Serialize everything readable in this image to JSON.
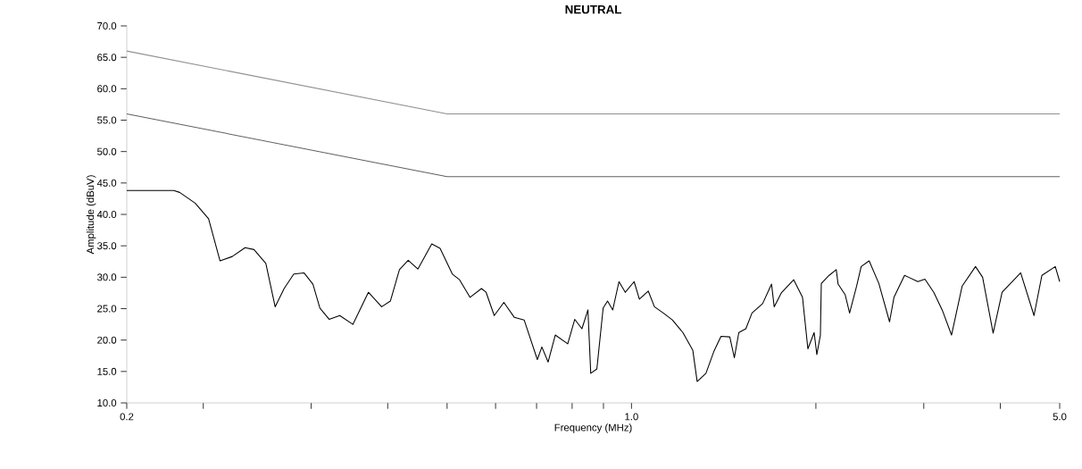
{
  "chart_data": {
    "type": "line",
    "title": "NEUTRAL",
    "xlabel": "Frequency (MHz)",
    "ylabel": "Amplitude (dBuV)",
    "log": "x",
    "xlim": [
      0.15,
      5.0
    ],
    "ylim": [
      10,
      70
    ],
    "xticks": [
      {
        "value": 0.15,
        "label": "0.2"
      },
      {
        "value": 0.2,
        "label": null
      },
      {
        "value": 0.3,
        "label": null
      },
      {
        "value": 0.4,
        "label": null
      },
      {
        "value": 0.5,
        "label": null
      },
      {
        "value": 0.6,
        "label": null
      },
      {
        "value": 0.7,
        "label": null
      },
      {
        "value": 0.8,
        "label": null
      },
      {
        "value": 0.9,
        "label": null
      },
      {
        "value": 1.0,
        "label": "1.0"
      },
      {
        "value": 2.0,
        "label": null
      },
      {
        "value": 3.0,
        "label": null
      },
      {
        "value": 4.0,
        "label": null
      },
      {
        "value": 5.0,
        "label": "5.0"
      }
    ],
    "yticks": [
      {
        "value": 10,
        "label": "10.0"
      },
      {
        "value": 15,
        "label": "15.0"
      },
      {
        "value": 20,
        "label": "20.0"
      },
      {
        "value": 25,
        "label": "25.0"
      },
      {
        "value": 30,
        "label": "30.0"
      },
      {
        "value": 35,
        "label": "35.0"
      },
      {
        "value": 40,
        "label": "40.0"
      },
      {
        "value": 45,
        "label": "45.0"
      },
      {
        "value": 50,
        "label": "50.0"
      },
      {
        "value": 55,
        "label": "55.0"
      },
      {
        "value": 60,
        "label": "60.0"
      },
      {
        "value": 65,
        "label": "65.0"
      },
      {
        "value": 70,
        "label": "70.0"
      }
    ],
    "series": [
      {
        "color": "#909090",
        "x": [
          0.15,
          0.5,
          5.0
        ],
        "values": [
          66,
          56,
          56
        ]
      },
      {
        "color": "#606060",
        "x": [
          0.15,
          0.5,
          5.0
        ],
        "values": [
          56,
          46,
          46
        ]
      },
      {
        "color": "#000000",
        "x": [
          0.15,
          0.179,
          0.183,
          0.194,
          0.204,
          0.213,
          0.223,
          0.234,
          0.242,
          0.253,
          0.262,
          0.271,
          0.281,
          0.292,
          0.302,
          0.31,
          0.321,
          0.334,
          0.351,
          0.372,
          0.391,
          0.404,
          0.418,
          0.432,
          0.448,
          0.472,
          0.487,
          0.51,
          0.524,
          0.545,
          0.569,
          0.579,
          0.597,
          0.619,
          0.644,
          0.668,
          0.702,
          0.714,
          0.731,
          0.751,
          0.787,
          0.808,
          0.83,
          0.849,
          0.858,
          0.878,
          0.899,
          0.914,
          0.932,
          0.954,
          0.977,
          1.01,
          1.03,
          1.065,
          1.09,
          1.127,
          1.166,
          1.213,
          1.259,
          1.28,
          1.323,
          1.363,
          1.4,
          1.447,
          1.472,
          1.497,
          1.537,
          1.573,
          1.637,
          1.693,
          1.71,
          1.756,
          1.84,
          1.902,
          1.941,
          1.987,
          2.007,
          2.034,
          2.041,
          2.102,
          2.159,
          2.174,
          2.233,
          2.27,
          2.331,
          2.371,
          2.443,
          2.534,
          2.638,
          2.682,
          2.791,
          2.934,
          3.013,
          3.115,
          3.221,
          3.33,
          3.466,
          3.644,
          3.743,
          3.894,
          4.027,
          4.318,
          4.54,
          4.677,
          4.918,
          5.0
        ],
        "values": [
          43.8,
          43.8,
          43.5,
          41.8,
          39.3,
          32.6,
          33.3,
          34.7,
          34.4,
          32.2,
          25.3,
          28.2,
          30.5,
          30.7,
          28.9,
          25.1,
          23.3,
          23.9,
          22.5,
          27.6,
          25.3,
          26.2,
          31.2,
          32.7,
          31.3,
          35.3,
          34.6,
          30.5,
          29.6,
          26.8,
          28.2,
          27.6,
          23.9,
          26.0,
          23.6,
          23.2,
          16.9,
          18.9,
          16.5,
          20.8,
          19.4,
          23.3,
          21.8,
          24.8,
          14.7,
          15.4,
          25.1,
          26.2,
          24.8,
          29.3,
          27.6,
          29.3,
          26.5,
          27.8,
          25.3,
          24.3,
          23.2,
          21.2,
          18.4,
          13.4,
          14.7,
          18.2,
          20.6,
          20.5,
          17.2,
          21.2,
          21.8,
          24.3,
          25.8,
          28.9,
          25.3,
          27.5,
          29.6,
          26.8,
          18.6,
          21.2,
          17.7,
          20.8,
          29.0,
          30.3,
          31.2,
          28.9,
          27.2,
          24.3,
          28.6,
          31.7,
          32.6,
          29.0,
          22.9,
          26.8,
          30.3,
          29.3,
          29.7,
          27.6,
          24.6,
          20.8,
          28.6,
          31.7,
          30.0,
          21.1,
          27.6,
          30.7,
          23.9,
          30.3,
          31.7,
          29.3
        ]
      }
    ]
  }
}
